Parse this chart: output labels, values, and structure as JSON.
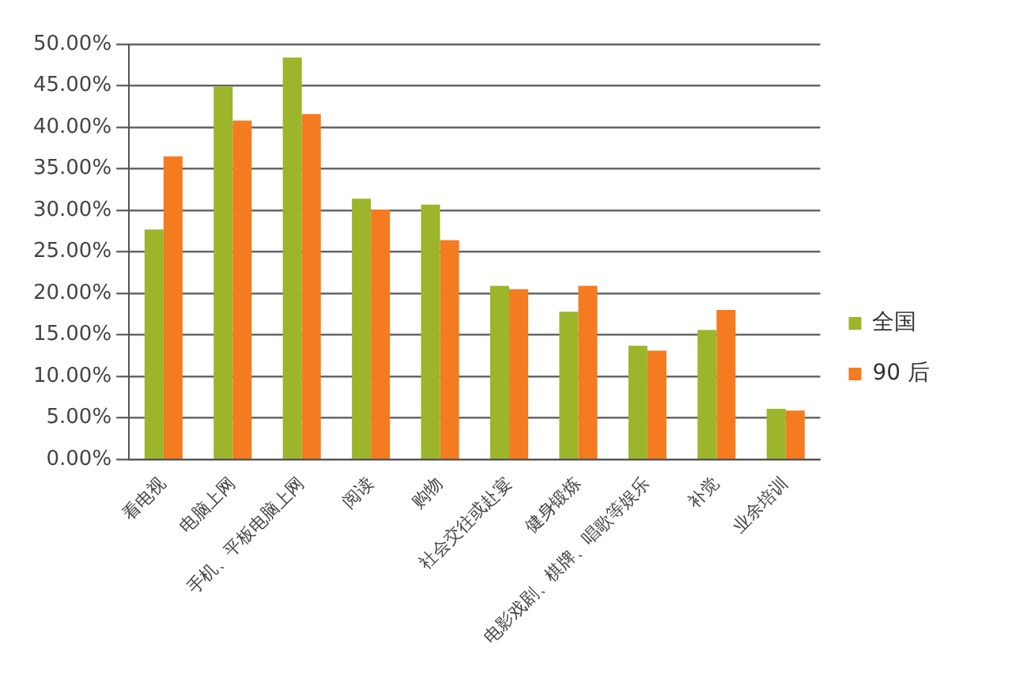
{
  "chart_data": {
    "type": "bar",
    "categories": [
      "看电视",
      "电脑上网",
      "手机、平板电脑上网",
      "阅读",
      "购物",
      "社会交往或赴宴",
      "健身锻炼",
      "电影戏剧、棋牌、唱歌等娱乐",
      "补觉",
      "业余培训"
    ],
    "series": [
      {
        "name": "全国",
        "color": "#9cb52b",
        "values": [
          27.7,
          44.9,
          48.4,
          31.4,
          30.7,
          20.9,
          17.8,
          13.7,
          15.6,
          6.1
        ]
      },
      {
        "name": "90 后",
        "color": "#f47b20",
        "values": [
          36.5,
          40.8,
          41.6,
          30.1,
          26.4,
          20.5,
          20.9,
          13.1,
          18.0,
          5.9
        ]
      }
    ],
    "ylim": [
      0,
      50
    ],
    "yticks": [
      {
        "value": 0,
        "label": "0.00%"
      },
      {
        "value": 5,
        "label": "5.00%"
      },
      {
        "value": 10,
        "label": "10.00%"
      },
      {
        "value": 15,
        "label": "15.00%"
      },
      {
        "value": 20,
        "label": "20.00%"
      },
      {
        "value": 25,
        "label": "25.00%"
      },
      {
        "value": 30,
        "label": "30.00%"
      },
      {
        "value": 35,
        "label": "35.00%"
      },
      {
        "value": 40,
        "label": "40.00%"
      },
      {
        "value": 45,
        "label": "45.00%"
      },
      {
        "value": 50,
        "label": "50.00%"
      }
    ],
    "grid": "y",
    "legend": "right"
  }
}
